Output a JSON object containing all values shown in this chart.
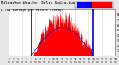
{
  "title": "Milwaukee Weather Solar Radiation",
  "subtitle": "& Day Average per Minute (Today)",
  "bg_color": "#e8e8e8",
  "plot_bg": "#ffffff",
  "bar_color": "#ff0000",
  "avg_line_color": "#0000cc",
  "grid_color": "#bbbbbb",
  "ylim": [
    0,
    900
  ],
  "xlim": [
    0,
    1440
  ],
  "num_points": 1440,
  "sunrise_min": 300,
  "sunset_min": 1140,
  "dashed_gridlines": [
    180,
    360,
    540,
    720,
    900,
    1080,
    1260
  ],
  "xtick_step": 60,
  "ytick_vals": [
    100,
    200,
    300,
    400,
    500,
    600,
    700,
    800
  ],
  "ytick_labels": [
    "1",
    "2",
    "3",
    "4",
    "5",
    "6",
    "7",
    "8"
  ],
  "title_fontsize": 3.5,
  "tick_fontsize": 2.8,
  "legend_blue": "#0000ff",
  "legend_red": "#ff0000"
}
